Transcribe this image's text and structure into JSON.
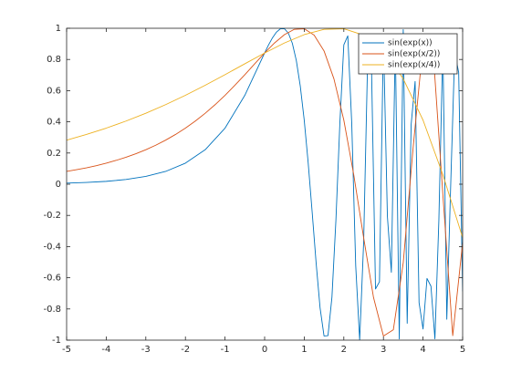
{
  "chart_data": {
    "type": "line",
    "xlim": [
      -5,
      5
    ],
    "ylim": [
      -1,
      1
    ],
    "xticks": [
      -5,
      -4,
      -3,
      -2,
      -1,
      0,
      1,
      2,
      3,
      4,
      5
    ],
    "yticks": [
      -1,
      -0.8,
      -0.6,
      -0.4,
      -0.2,
      0,
      0.2,
      0.4,
      0.6,
      0.8,
      1
    ],
    "legend": "northeast",
    "series": [
      {
        "name": "sin(exp(x))",
        "color": "#0072bd",
        "x": [
          -5,
          -4.5,
          -4,
          -3.5,
          -3,
          -2.5,
          -2,
          -1.5,
          -1,
          -0.5,
          0,
          0.1,
          0.2,
          0.3,
          0.4,
          0.5,
          0.6,
          0.7,
          0.8,
          0.9,
          1,
          1.1,
          1.2,
          1.3,
          1.4,
          1.5,
          1.6,
          1.7,
          1.8,
          1.9,
          2,
          2.1,
          2.2,
          2.3,
          2.4,
          2.5,
          2.6,
          2.7,
          2.8,
          2.9,
          3,
          3.1,
          3.2,
          3.3,
          3.4,
          3.5,
          3.6,
          3.7,
          3.8,
          3.9,
          4,
          4.1,
          4.2,
          4.3,
          4.4,
          4.5,
          4.6,
          4.7,
          4.8,
          4.9,
          5
        ],
        "values": [
          0.0067,
          0.0111,
          0.0183,
          0.0302,
          0.0498,
          0.082,
          0.1349,
          0.2213,
          0.3596,
          0.57,
          0.8415,
          0.8936,
          0.9396,
          0.9757,
          0.9969,
          0.997,
          0.9686,
          0.9035,
          0.7936,
          0.63,
          0.4108,
          0.1367,
          -0.1776,
          -0.5035,
          -0.7927,
          -0.9735,
          -0.9712,
          -0.7239,
          -0.2315,
          0.3919,
          0.8939,
          0.9516,
          0.3895,
          -0.5222,
          -0.9997,
          -0.3745,
          0.7817,
          0.7368,
          -0.6719,
          -0.6253,
          0.9444,
          -0.2055,
          -0.5648,
          0.9174,
          -0.9925,
          0.9917,
          -0.8919,
          0.3835,
          0.6588,
          -0.7598,
          -0.9288,
          -0.6045,
          -0.6543,
          -0.9918,
          -0.2285,
          0.8863,
          -0.8659,
          0.0086,
          0.8476,
          0.7166,
          -0.6873
        ]
      },
      {
        "name": "sin(exp(x/2))",
        "color": "#d95319",
        "x": [
          -5,
          -4.75,
          -4.5,
          -4.25,
          -4,
          -3.75,
          -3.5,
          -3.25,
          -3,
          -2.75,
          -2.5,
          -2.25,
          -2,
          -1.75,
          -1.5,
          -1.25,
          -1,
          -0.75,
          -0.5,
          -0.25,
          0,
          0.25,
          0.5,
          0.75,
          1,
          1.25,
          1.5,
          1.75,
          2,
          2.25,
          2.5,
          2.75,
          3,
          3.25,
          3.5,
          3.75,
          4,
          4.25,
          4.5,
          4.75,
          5
        ],
        "values": [
          0.082,
          0.0929,
          0.1052,
          0.1191,
          0.1349,
          0.1528,
          0.1729,
          0.1956,
          0.2213,
          0.2501,
          0.2826,
          0.319,
          0.3596,
          0.4049,
          0.455,
          0.5101,
          0.57,
          0.6346,
          0.7023,
          0.7724,
          0.8415,
          0.9058,
          0.9592,
          0.9932,
          0.997,
          0.9559,
          0.8548,
          0.6759,
          0.4108,
          0.0613,
          -0.3422,
          -0.7268,
          -0.9735,
          -0.9337,
          -0.5043,
          0.2354,
          0.8939,
          0.8679,
          -0.0629,
          -0.9712,
          -0.3745
        ]
      },
      {
        "name": "sin(exp(x/4))",
        "color": "#edb120",
        "x": [
          -5,
          -4.5,
          -4,
          -3.5,
          -3,
          -2.5,
          -2,
          -1.5,
          -1,
          -0.5,
          0,
          0.5,
          1,
          1.5,
          2,
          2.5,
          3,
          3.5,
          4,
          4.5,
          5
        ],
        "values": [
          0.2826,
          0.319,
          0.3596,
          0.4049,
          0.455,
          0.5101,
          0.57,
          0.6346,
          0.7023,
          0.7724,
          0.8415,
          0.9058,
          0.9592,
          0.9932,
          0.997,
          0.9559,
          0.8548,
          0.6759,
          0.4108,
          0.0613,
          -0.3422
        ]
      }
    ]
  }
}
